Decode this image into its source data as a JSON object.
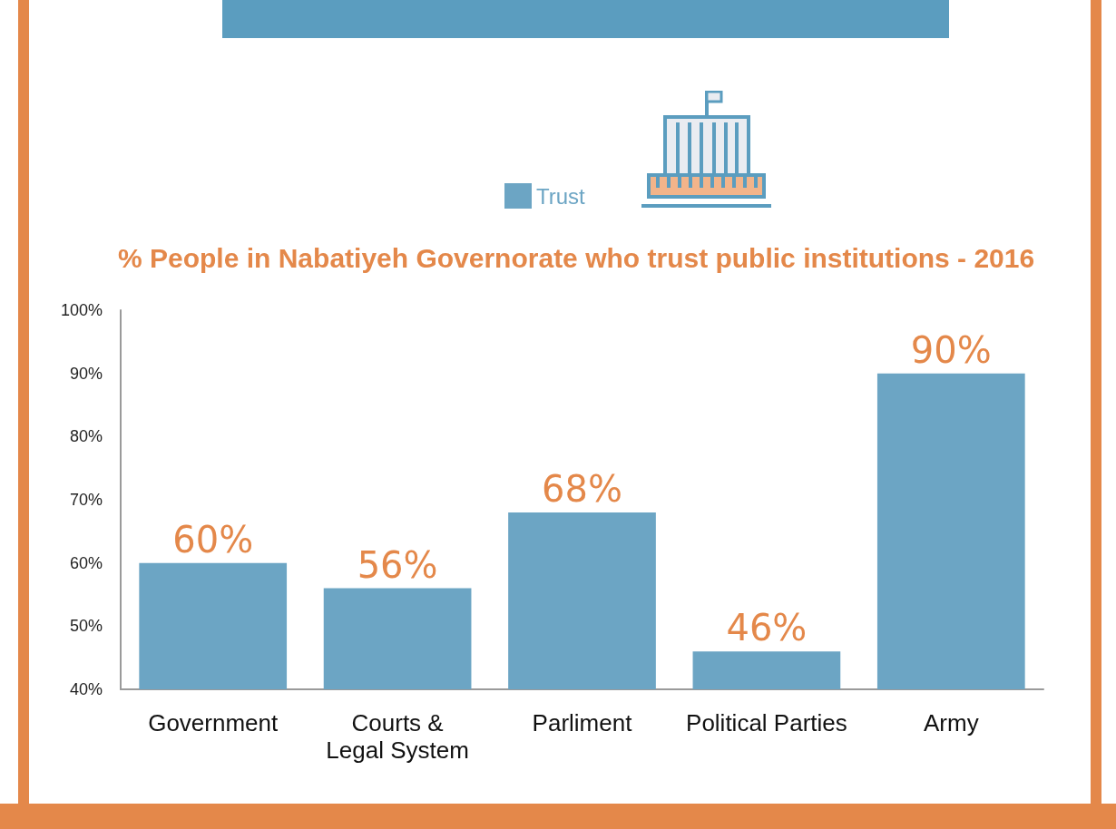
{
  "chart_data": {
    "type": "bar",
    "title": "% People in Nabatiyeh Governorate who trust public institutions - 2016",
    "categories": [
      "Government",
      "Courts &\nLegal System",
      "Parliment",
      "Political Parties",
      "Army"
    ],
    "series": [
      {
        "name": "Trust",
        "color": "#6ca5c4",
        "values": [
          60,
          56,
          68,
          46,
          90
        ],
        "value_labels": [
          "60%",
          "56%",
          "68%",
          "46%",
          "90%"
        ]
      }
    ],
    "ylim": [
      40,
      100
    ],
    "yticks": [
      {
        "value": 40,
        "label": "40%"
      },
      {
        "value": 50,
        "label": "50%"
      },
      {
        "value": 60,
        "label": "60%"
      },
      {
        "value": 70,
        "label": "70%"
      },
      {
        "value": 80,
        "label": "80%"
      },
      {
        "value": 90,
        "label": "90%"
      },
      {
        "value": 100,
        "label": "100%"
      }
    ],
    "legend": "top",
    "grid": false
  }
}
